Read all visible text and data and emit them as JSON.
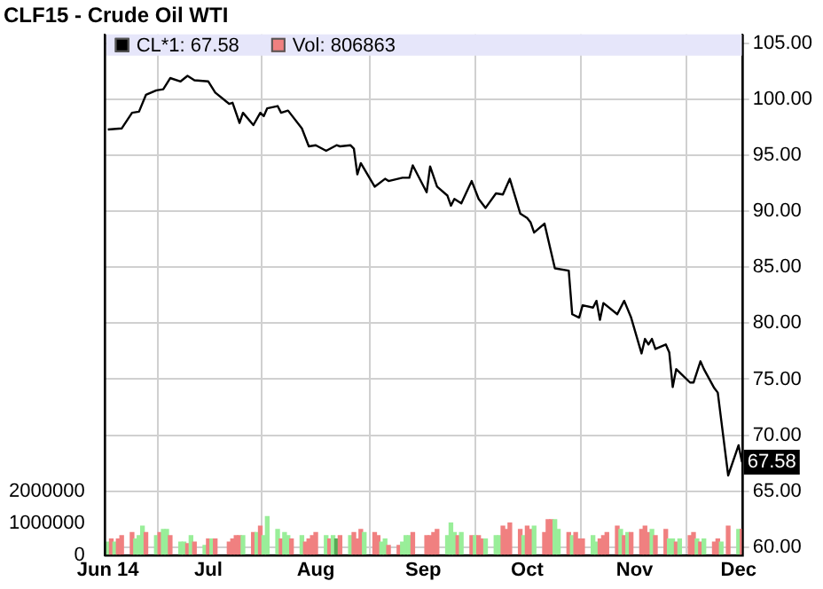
{
  "chart_data": {
    "type": "line",
    "title": "CLF15 - Crude Oil WTI",
    "legend": "top left",
    "grid": true,
    "xlim": [
      "2014-06-01",
      "2014-12-02"
    ],
    "xticks": [
      {
        "value": "2014-06-02",
        "label": "Jun 14"
      },
      {
        "value": "2014-07-01",
        "label": "Jul"
      },
      {
        "value": "2014-08-01",
        "label": "Aug"
      },
      {
        "value": "2014-09-01",
        "label": "Sep"
      },
      {
        "value": "2014-10-01",
        "label": "Oct"
      },
      {
        "value": "2014-11-01",
        "label": "Nov"
      },
      {
        "value": "2014-12-01",
        "label": "Dec"
      }
    ],
    "ylim": [
      0,
      16300000
    ],
    "yticks": [
      0,
      1000000,
      2000000
    ],
    "y2lim": [
      59.3,
      105.8
    ],
    "y2ticks": [
      {
        "value": 60,
        "label": "60.00"
      },
      {
        "value": 65,
        "label": "65.00"
      },
      {
        "value": 70,
        "label": "70.00"
      },
      {
        "value": 75,
        "label": "75.00"
      },
      {
        "value": 80,
        "label": "80.00"
      },
      {
        "value": 85,
        "label": "85.00"
      },
      {
        "value": 90,
        "label": "90.00"
      },
      {
        "value": 95,
        "label": "95.00"
      },
      {
        "value": 100,
        "label": "100.00"
      },
      {
        "value": 105,
        "label": "105.00"
      }
    ],
    "series": [
      {
        "name": "CL*1: 67.58",
        "axis": "y2",
        "color": "#000000",
        "value_labels": [
          null,
          null,
          null,
          null,
          null,
          null,
          null,
          null,
          null,
          null,
          null,
          null,
          null,
          null,
          null,
          null,
          null,
          null,
          null,
          null,
          null,
          null,
          null,
          null,
          null,
          null,
          null,
          null,
          null,
          null,
          null,
          null,
          null,
          null,
          null,
          null,
          null,
          null,
          null,
          null,
          null,
          null,
          null,
          null,
          null,
          null,
          null,
          null,
          null,
          null,
          null,
          null,
          null,
          null,
          null,
          null,
          null,
          null,
          null,
          null,
          null,
          null,
          null,
          null,
          null,
          null,
          null,
          null,
          null,
          null,
          null,
          null,
          null,
          null,
          null,
          null,
          null,
          null,
          null,
          null,
          null,
          null,
          null,
          null,
          null,
          null,
          null,
          null,
          "67.58"
        ],
        "x": [
          "2014-06-02",
          "2014-06-06",
          "2014-06-09",
          "2014-06-11",
          "2014-06-13",
          "2014-06-16",
          "2014-06-18",
          "2014-06-20",
          "2014-06-23",
          "2014-06-25",
          "2014-06-27",
          "2014-07-01",
          "2014-07-03",
          "2014-07-07",
          "2014-07-08",
          "2014-07-10",
          "2014-07-11",
          "2014-07-14",
          "2014-07-16",
          "2014-07-17",
          "2014-07-18",
          "2014-07-21",
          "2014-07-22",
          "2014-07-24",
          "2014-07-28",
          "2014-07-30",
          "2014-08-01",
          "2014-08-04",
          "2014-08-07",
          "2014-08-08",
          "2014-08-11",
          "2014-08-12",
          "2014-08-13",
          "2014-08-14",
          "2014-08-18",
          "2014-08-21",
          "2014-08-22",
          "2014-08-26",
          "2014-08-28",
          "2014-08-29",
          "2014-09-02",
          "2014-09-03",
          "2014-09-05",
          "2014-09-08",
          "2014-09-09",
          "2014-09-10",
          "2014-09-12",
          "2014-09-15",
          "2014-09-17",
          "2014-09-19",
          "2014-09-22",
          "2014-09-24",
          "2014-09-26",
          "2014-09-29",
          "2014-10-01",
          "2014-10-02",
          "2014-10-03",
          "2014-10-06",
          "2014-10-09",
          "2014-10-13",
          "2014-10-14",
          "2014-10-16",
          "2014-10-17",
          "2014-10-20",
          "2014-10-21",
          "2014-10-22",
          "2014-10-23",
          "2014-10-27",
          "2014-10-29",
          "2014-10-31",
          "2014-11-03",
          "2014-11-04",
          "2014-11-05",
          "2014-11-06",
          "2014-11-07",
          "2014-11-10",
          "2014-11-11",
          "2014-11-12",
          "2014-11-13",
          "2014-11-14",
          "2014-11-17",
          "2014-11-18",
          "2014-11-20",
          "2014-11-21",
          "2014-11-24",
          "2014-11-25",
          "2014-11-28",
          "2014-12-01",
          "2014-12-02"
        ],
        "values": [
          97.3,
          97.4,
          98.8,
          98.9,
          100.4,
          100.8,
          100.9,
          101.9,
          101.6,
          102.1,
          101.7,
          101.6,
          100.6,
          99.6,
          99.7,
          97.9,
          98.8,
          97.7,
          98.8,
          98.5,
          99.2,
          99.4,
          98.8,
          99.0,
          97.4,
          95.8,
          95.9,
          95.4,
          95.9,
          95.8,
          95.9,
          95.6,
          93.3,
          94.3,
          92.2,
          92.9,
          92.7,
          93.0,
          93.0,
          94.1,
          91.7,
          94.0,
          92.2,
          91.4,
          90.5,
          91.1,
          90.7,
          92.7,
          91.1,
          90.3,
          91.6,
          91.5,
          92.9,
          89.8,
          89.4,
          89.0,
          88.1,
          88.9,
          84.9,
          84.7,
          80.8,
          80.5,
          81.6,
          81.4,
          82.0,
          80.3,
          81.8,
          80.8,
          82.0,
          80.5,
          77.3,
          78.6,
          78.1,
          78.6,
          77.7,
          78.1,
          77.4,
          74.3,
          75.9,
          75.6,
          74.7,
          74.7,
          76.6,
          75.9,
          74.2,
          73.8,
          66.4,
          69.1,
          67.58
        ]
      },
      {
        "name": "Vol: 806863",
        "type": "bar",
        "axis": "y",
        "color": "#f08080",
        "x": [
          "2014-06-02",
          "2014-06-03",
          "2014-06-04",
          "2014-06-05",
          "2014-06-06",
          "2014-06-09",
          "2014-06-10",
          "2014-06-11",
          "2014-06-12",
          "2014-06-13",
          "2014-06-16",
          "2014-06-17",
          "2014-06-18",
          "2014-06-19",
          "2014-06-20",
          "2014-06-23",
          "2014-06-24",
          "2014-06-25",
          "2014-06-26",
          "2014-06-27",
          "2014-06-30",
          "2014-07-01",
          "2014-07-02",
          "2014-07-03",
          "2014-07-07",
          "2014-07-08",
          "2014-07-09",
          "2014-07-10",
          "2014-07-11",
          "2014-07-14",
          "2014-07-15",
          "2014-07-16",
          "2014-07-17",
          "2014-07-18",
          "2014-07-21",
          "2014-07-22",
          "2014-07-23",
          "2014-07-24",
          "2014-07-25",
          "2014-07-28",
          "2014-07-29",
          "2014-07-30",
          "2014-07-31",
          "2014-08-01",
          "2014-08-04",
          "2014-08-05",
          "2014-08-06",
          "2014-08-07",
          "2014-08-08",
          "2014-08-11",
          "2014-08-12",
          "2014-08-13",
          "2014-08-14",
          "2014-08-15",
          "2014-08-18",
          "2014-08-19",
          "2014-08-20",
          "2014-08-21",
          "2014-08-22",
          "2014-08-25",
          "2014-08-26",
          "2014-08-27",
          "2014-08-28",
          "2014-08-29",
          "2014-09-02",
          "2014-09-03",
          "2014-09-04",
          "2014-09-05",
          "2014-09-08",
          "2014-09-09",
          "2014-09-10",
          "2014-09-11",
          "2014-09-12",
          "2014-09-15",
          "2014-09-16",
          "2014-09-17",
          "2014-09-18",
          "2014-09-19",
          "2014-09-22",
          "2014-09-23",
          "2014-09-24",
          "2014-09-25",
          "2014-09-26",
          "2014-09-29",
          "2014-09-30",
          "2014-10-01",
          "2014-10-02",
          "2014-10-03",
          "2014-10-06",
          "2014-10-07",
          "2014-10-08",
          "2014-10-09",
          "2014-10-10",
          "2014-10-13",
          "2014-10-14",
          "2014-10-15",
          "2014-10-16",
          "2014-10-17",
          "2014-10-20",
          "2014-10-21",
          "2014-10-22",
          "2014-10-23",
          "2014-10-24",
          "2014-10-27",
          "2014-10-28",
          "2014-10-29",
          "2014-10-30",
          "2014-10-31",
          "2014-11-03",
          "2014-11-04",
          "2014-11-05",
          "2014-11-06",
          "2014-11-07",
          "2014-11-10",
          "2014-11-11",
          "2014-11-12",
          "2014-11-13",
          "2014-11-14",
          "2014-11-17",
          "2014-11-18",
          "2014-11-19",
          "2014-11-20",
          "2014-11-21",
          "2014-11-24",
          "2014-11-25",
          "2014-11-26",
          "2014-11-28",
          "2014-12-01",
          "2014-12-02"
        ],
        "values": [
          400000,
          500000,
          400000,
          500000,
          600000,
          700000,
          500000,
          600000,
          900000,
          700000,
          600000,
          700000,
          800000,
          800000,
          600000,
          400000,
          400000,
          350000,
          600000,
          400000,
          300000,
          500000,
          500000,
          500000,
          400000,
          500000,
          600000,
          600000,
          600000,
          700000,
          700000,
          900000,
          600000,
          1200000,
          800000,
          500000,
          700000,
          600000,
          500000,
          600000,
          400000,
          500000,
          600000,
          700000,
          600000,
          500000,
          600000,
          500000,
          600000,
          600000,
          700000,
          500000,
          800000,
          700000,
          700000,
          600000,
          400000,
          500000,
          300000,
          300000,
          400000,
          600000,
          600000,
          700000,
          600000,
          600000,
          700000,
          800000,
          600000,
          1000000,
          700000,
          600000,
          700000,
          600000,
          600000,
          600000,
          500000,
          500000,
          600000,
          600000,
          900000,
          800000,
          1000000,
          800000,
          600000,
          900000,
          800000,
          900000,
          700000,
          1100000,
          1100000,
          1100000,
          800000,
          700000,
          600000,
          700000,
          500000,
          500000,
          600000,
          400000,
          500000,
          600000,
          700000,
          900000,
          800000,
          600000,
          700000,
          700000,
          800000,
          900000,
          700000,
          800000,
          600000,
          800000,
          500000,
          500000,
          400000,
          500000,
          600000,
          700000,
          500000,
          400000,
          500000,
          400000,
          500000,
          400000,
          900000,
          800000,
          806863
        ],
        "colors": [
          "#99ee99",
          "#f08080",
          "#99ee99",
          "#f08080",
          "#f08080",
          "#f08080",
          "#99ee99",
          "#99ee99",
          "#99ee99",
          "#f08080",
          "#99ee99",
          "#f08080",
          "#99ee99",
          "#99ee99",
          "#f08080",
          "#99ee99",
          "#99ee99",
          "#f08080",
          "#99ee99",
          "#f08080",
          "#99ee99",
          "#f08080",
          "#99ee99",
          "#f08080",
          "#f08080",
          "#f08080",
          "#f08080",
          "#f08080",
          "#99ee99",
          "#f08080",
          "#99ee99",
          "#f08080",
          "#99ee99",
          "#99ee99",
          "#99ee99",
          "#f08080",
          "#99ee99",
          "#99ee99",
          "#f08080",
          "#99ee99",
          "#f08080",
          "#f08080",
          "#f08080",
          "#f08080",
          "#99ee99",
          "#f08080",
          "#99ee99",
          "#55aa55",
          "#f08080",
          "#99ee99",
          "#f08080",
          "#f08080",
          "#f08080",
          "#99ee99",
          "#f08080",
          "#f08080",
          "#99ee99",
          "#99ee99",
          "#f08080",
          "#f08080",
          "#99ee99",
          "#99ee99",
          "#99ee99",
          "#f08080",
          "#f08080",
          "#f08080",
          "#f08080",
          "#f08080",
          "#99ee99",
          "#99ee99",
          "#99ee99",
          "#f08080",
          "#99ee99",
          "#f08080",
          "#99ee99",
          "#f08080",
          "#f08080",
          "#99ee99",
          "#99ee99",
          "#99ee99",
          "#f08080",
          "#f08080",
          "#f08080",
          "#f08080",
          "#99ee99",
          "#f08080",
          "#f08080",
          "#99ee99",
          "#f08080",
          "#f08080",
          "#f08080",
          "#99ee99",
          "#99ee99",
          "#f08080",
          "#99ee99",
          "#f08080",
          "#f08080",
          "#f08080",
          "#99ee99",
          "#99ee99",
          "#f08080",
          "#f08080",
          "#f08080",
          "#f08080",
          "#99ee99",
          "#f08080",
          "#99ee99",
          "#f08080",
          "#f08080",
          "#f08080",
          "#f08080",
          "#99ee99",
          "#f08080",
          "#f08080",
          "#99ee99",
          "#99ee99",
          "#f08080",
          "#99ee99",
          "#f08080",
          "#f08080",
          "#99ee99",
          "#f08080",
          "#99ee99",
          "#f08080",
          "#f08080",
          "#99ee99",
          "#f08080",
          "#99ee99",
          "#f08080"
        ]
      }
    ]
  }
}
